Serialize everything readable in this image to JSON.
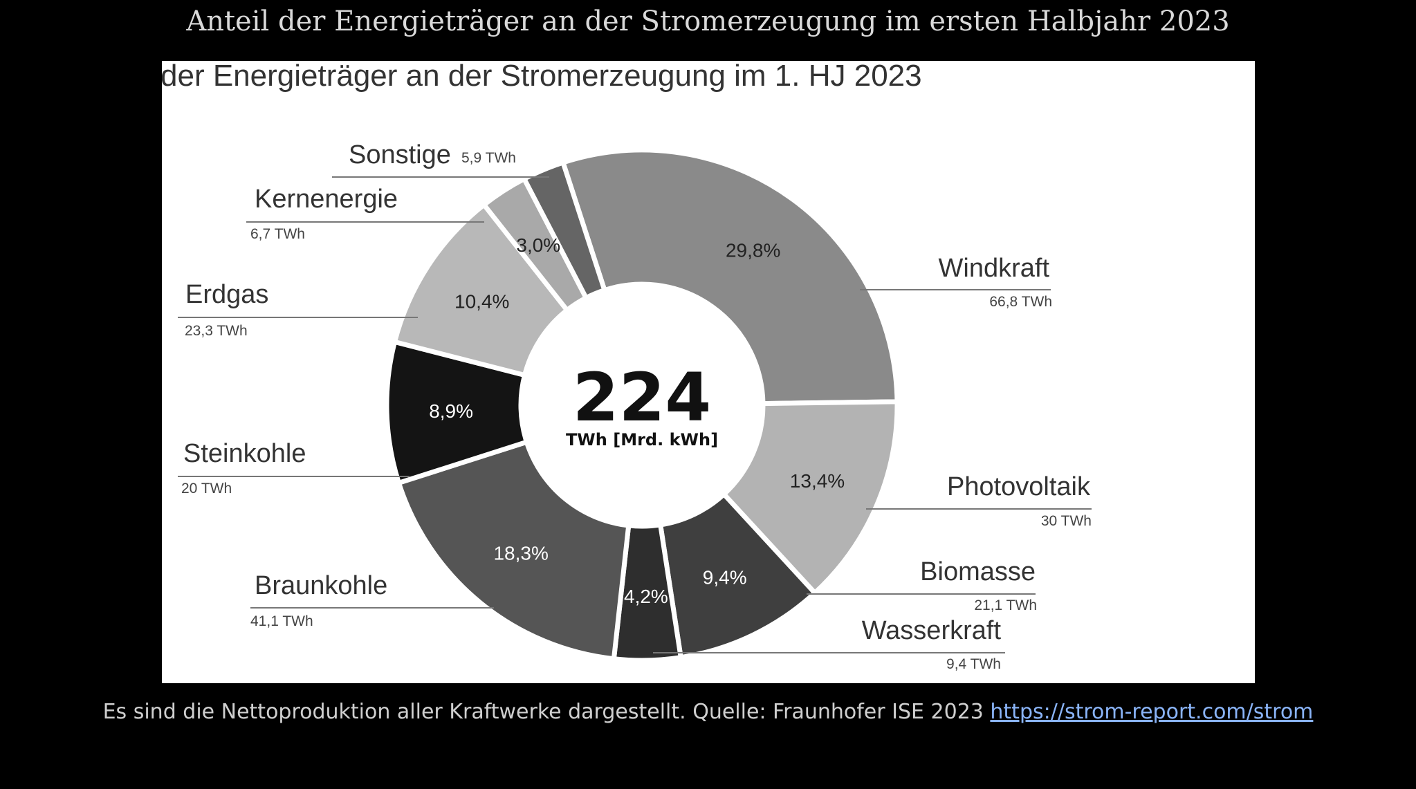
{
  "page_title": "Anteil der Energieträger an der Stromerzeugung im ersten Halbjahr 2023",
  "caption": {
    "text": "Es sind die Nettoproduktion aller Kraftwerke dargestellt. Quelle: Fraunhofer ISE 2023 ",
    "link_text": "https://strom-report.com/strom"
  },
  "chart_data": {
    "type": "pie",
    "variant": "donut",
    "title": "der Energieträger an der Stromerzeugung im 1. HJ 2023",
    "center_value": "224",
    "center_unit": "TWh [Mrd. kWh]",
    "slices": [
      {
        "name": "Windkraft",
        "twh_label": "66,8 TWh",
        "percent_label": "29,8%",
        "value": 66.8,
        "color": "#8a8a8a"
      },
      {
        "name": "Photovoltaik",
        "twh_label": "30 TWh",
        "percent_label": "13,4%",
        "value": 30.0,
        "color": "#b3b3b3"
      },
      {
        "name": "Biomasse",
        "twh_label": "21,1 TWh",
        "percent_label": "9,4%",
        "value": 21.1,
        "color": "#3f3f3f"
      },
      {
        "name": "Wasserkraft",
        "twh_label": "9,4 TWh",
        "percent_label": "4,2%",
        "value": 9.4,
        "color": "#2e2e2e"
      },
      {
        "name": "Braunkohle",
        "twh_label": "41,1 TWh",
        "percent_label": "18,3%",
        "value": 41.1,
        "color": "#555555"
      },
      {
        "name": "Steinkohle",
        "twh_label": "20 TWh",
        "percent_label": "8,9%",
        "value": 20.0,
        "color": "#141414"
      },
      {
        "name": "Erdgas",
        "twh_label": "23,3 TWh",
        "percent_label": "10,4%",
        "value": 23.3,
        "color": "#b8b8b8"
      },
      {
        "name": "Kernenergie",
        "twh_label": "6,7 TWh",
        "percent_label": "3,0%",
        "value": 6.7,
        "color": "#a9a9a9"
      },
      {
        "name": "Sonstige",
        "twh_label": "5,9 TWh",
        "percent_label": "",
        "value": 5.9,
        "color": "#656565"
      }
    ]
  }
}
